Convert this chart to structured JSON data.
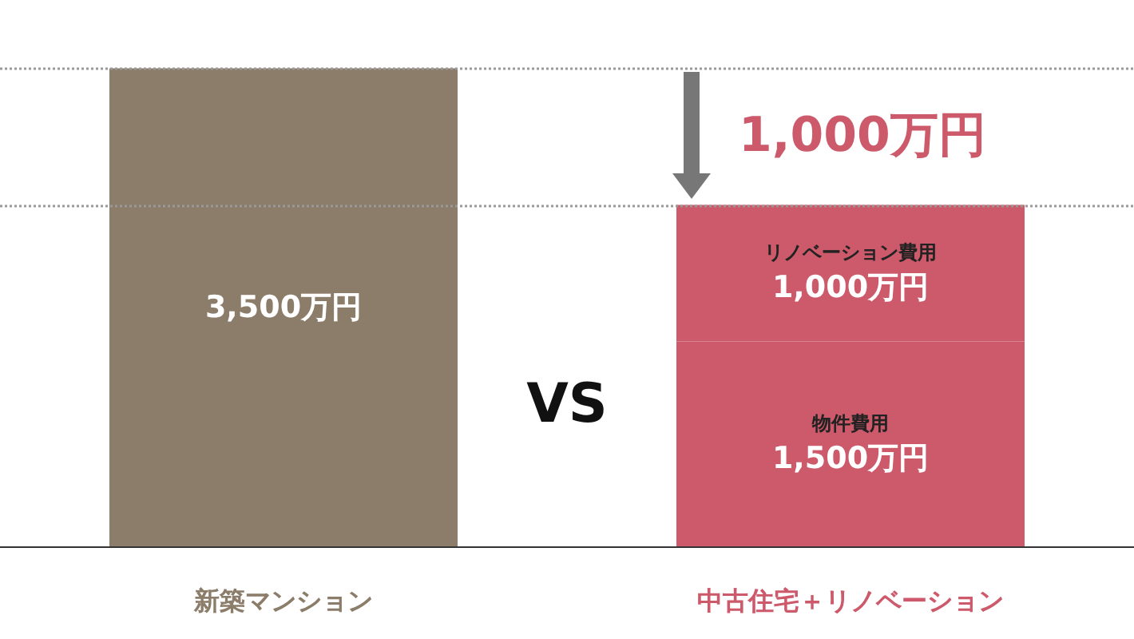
{
  "chart_data": {
    "type": "bar",
    "categories": [
      "新築マンション",
      "中古住宅＋リノベーション"
    ],
    "stacked": true,
    "series": [
      {
        "color": "#8c7d6a",
        "values": [
          3500,
          null
        ],
        "value_labels": [
          "3,500万円",
          null
        ]
      },
      {
        "name": "物件費用",
        "color": "#cc5a6b",
        "values": [
          null,
          1500
        ],
        "value_labels": [
          null,
          "1,500万円"
        ]
      },
      {
        "name": "リノベーション費用",
        "color": "#cc5a6b",
        "values": [
          null,
          1000
        ],
        "value_labels": [
          null,
          "1,000万円"
        ]
      }
    ],
    "ref_lines": [
      {
        "axis": "y",
        "value": 3500,
        "color": "#999999",
        "line_style": "dotted"
      },
      {
        "axis": "y",
        "value": 2500,
        "color": "#999999",
        "line_style": "dotted"
      }
    ],
    "annotations": [
      "VS",
      "1,000万円"
    ],
    "legend": false
  }
}
